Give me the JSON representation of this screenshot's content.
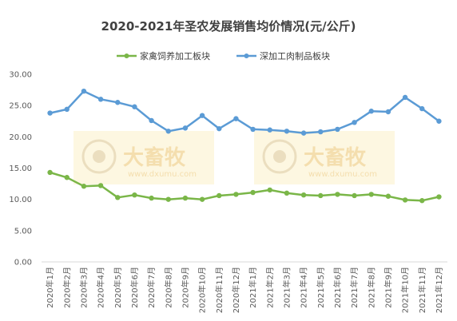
{
  "chart_data": {
    "type": "line",
    "title": "2020-2021年圣农发展销售均价情况(元/公斤)",
    "ylim": [
      0,
      30
    ],
    "yticks": [
      "0.00",
      "5.00",
      "10.00",
      "15.00",
      "20.00",
      "25.00",
      "30.00"
    ],
    "grid": false,
    "legend": "top",
    "categories": [
      "2020年1月",
      "2020年2月",
      "2020年3月",
      "2020年4月",
      "2020年5月",
      "2020年6月",
      "2020年7月",
      "2020年8月",
      "2020年9月",
      "2020年10月",
      "2020年11月",
      "2020年12月",
      "2021年1月",
      "2021年2月",
      "2021年3月",
      "2021年4月",
      "2021年5月",
      "2021年6月",
      "2021年7月",
      "2021年8月",
      "2021年9月",
      "2021年10月",
      "2021年11月",
      "2021年12月"
    ],
    "series": [
      {
        "name": "家禽饲养加工板块",
        "color": "#7ab648",
        "values": [
          14.3,
          13.5,
          12.1,
          12.2,
          10.3,
          10.7,
          10.2,
          10.0,
          10.2,
          10.0,
          10.6,
          10.8,
          11.1,
          11.5,
          11.0,
          10.7,
          10.6,
          10.8,
          10.6,
          10.8,
          10.5,
          9.9,
          9.8,
          10.4
        ]
      },
      {
        "name": "深加工肉制品板块",
        "color": "#5b9bd5",
        "values": [
          23.8,
          24.4,
          27.3,
          26.0,
          25.5,
          24.8,
          22.6,
          20.9,
          21.4,
          23.4,
          21.3,
          22.9,
          21.2,
          21.1,
          20.9,
          20.6,
          20.8,
          21.2,
          22.3,
          24.1,
          24.0,
          26.3,
          24.5,
          22.5
        ]
      }
    ]
  },
  "watermark": {
    "text": "大畜牧",
    "sub": "www.dxumu.com"
  }
}
